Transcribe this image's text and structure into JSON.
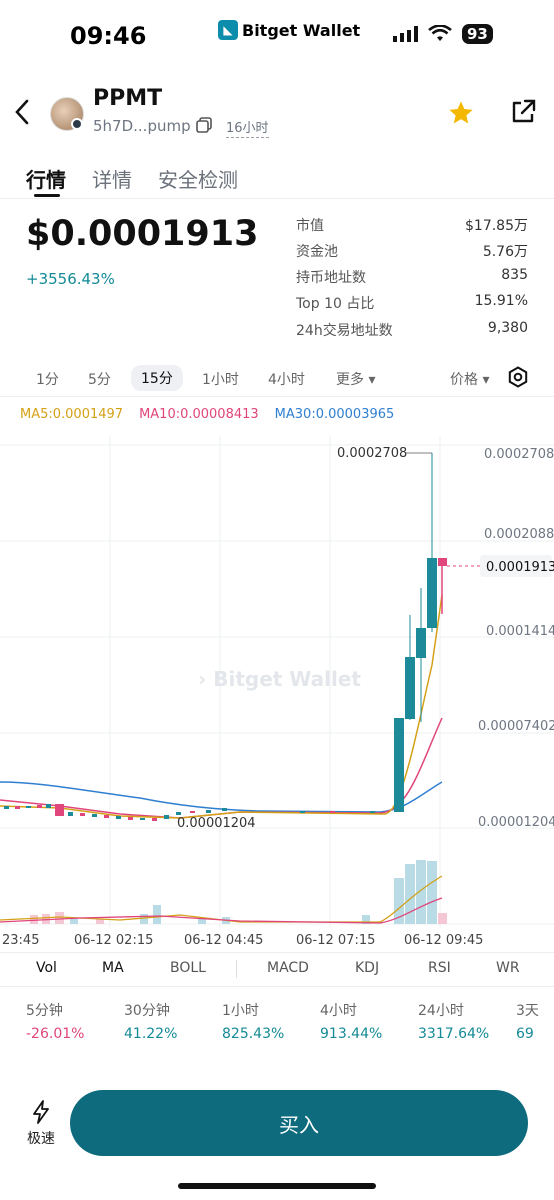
{
  "status_bar": {
    "time": "09:46",
    "app_name": "Bitget Wallet",
    "battery": "93"
  },
  "header": {
    "token_name": "PPMT",
    "address": "5h7D...pump",
    "age": "16小时"
  },
  "tabs": [
    {
      "label": "行情",
      "active": true
    },
    {
      "label": "详情",
      "active": false
    },
    {
      "label": "安全检测",
      "active": false
    }
  ],
  "price": {
    "value": "$0.0001913",
    "change": "+3556.43%"
  },
  "stats": [
    {
      "label": "市值",
      "value": "$17.85万"
    },
    {
      "label": "资金池",
      "value": "5.76万"
    },
    {
      "label": "持币地址数",
      "value": "835"
    },
    {
      "label": "Top 10 占比",
      "value": "15.91%"
    },
    {
      "label": "24h交易地址数",
      "value": "9,380"
    }
  ],
  "intervals": {
    "items": [
      "1分",
      "5分",
      "15分",
      "1小时",
      "4小时"
    ],
    "selected": "15分",
    "more": "更多",
    "price_toggle": "价格"
  },
  "ma_legend": {
    "ma5": "MA5:0.0001497",
    "ma10": "MA10:0.00008413",
    "ma30": "MA30:0.00003965"
  },
  "chart_data": {
    "type": "candlestick",
    "y_labels": [
      "0.0002708",
      "0.0002088",
      "0.0001414",
      "0.00007402",
      "0.00001204"
    ],
    "current_price_label": "0.0001913",
    "high_label": "0.0002708",
    "low_label": "0.00001204",
    "x_labels": [
      "23:45",
      "06-12 02:15",
      "06-12 04:45",
      "06-12 07:15",
      "06-12 09:45"
    ],
    "series_colors": {
      "ma5": "#d4a017",
      "ma10": "#e0457b",
      "ma30": "#2f7fd0",
      "up": "#1d8a9a",
      "down": "#e0457b"
    },
    "watermark": "Bitget Wallet"
  },
  "indicator_tabs": [
    "Vol",
    "MA",
    "BOLL",
    "MACD",
    "KDJ",
    "RSI",
    "WR"
  ],
  "performance": [
    {
      "label": "5分钟",
      "value": "-26.01%",
      "positive": false
    },
    {
      "label": "30分钟",
      "value": "41.22%",
      "positive": true
    },
    {
      "label": "1小时",
      "value": "825.43%",
      "positive": true
    },
    {
      "label": "4小时",
      "value": "913.44%",
      "positive": true
    },
    {
      "label": "24小时",
      "value": "3317.64%",
      "positive": true
    },
    {
      "label": "3天",
      "value": "69",
      "positive": true
    }
  ],
  "bottom": {
    "fast_label": "极速",
    "buy_label": "买入"
  }
}
